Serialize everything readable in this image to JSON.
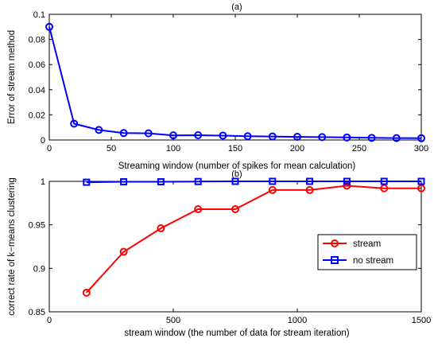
{
  "chart_data": [
    {
      "type": "line",
      "title": "(a)",
      "xlabel": "Streaming window (number of spikes for mean calculation)",
      "ylabel": "Error of stream method",
      "xlim": [
        0,
        300
      ],
      "ylim": [
        0,
        0.1
      ],
      "xticks": [
        0,
        50,
        100,
        150,
        200,
        250,
        300
      ],
      "xtick_labels": [
        "0",
        "50",
        "100",
        "150",
        "200",
        "250",
        "300"
      ],
      "yticks": [
        0,
        0.02,
        0.04,
        0.06,
        0.08,
        0.1
      ],
      "ytick_labels": [
        "0",
        "0.02",
        "0.04",
        "0.06",
        "0.08",
        "0.1"
      ],
      "grid": false,
      "series": [
        {
          "color": "#0000ff",
          "marker": "circle",
          "x": [
            0,
            20,
            40,
            60,
            80,
            100,
            120,
            140,
            160,
            180,
            200,
            220,
            240,
            260,
            280,
            300
          ],
          "y": [
            0.09,
            0.013,
            0.008,
            0.0055,
            0.0053,
            0.0037,
            0.0038,
            0.0035,
            0.003,
            0.0028,
            0.0025,
            0.0023,
            0.002,
            0.0017,
            0.0015,
            0.0014
          ]
        }
      ]
    },
    {
      "type": "line",
      "title": "(b)",
      "xlabel": "stream window (the number of data for stream iteration)",
      "ylabel": "correct rate of k−means clustering",
      "xlim": [
        0,
        1500
      ],
      "ylim": [
        0.85,
        1.0
      ],
      "xticks": [
        0,
        500,
        1000,
        1500
      ],
      "xtick_labels": [
        "0",
        "500",
        "1000",
        "1500"
      ],
      "yticks": [
        0.85,
        0.9,
        0.95,
        1.0
      ],
      "ytick_labels": [
        "0.85",
        "0.9",
        "0.95",
        "1"
      ],
      "grid": false,
      "legend_position": "right",
      "series": [
        {
          "name": "stream",
          "color": "#ff0000",
          "marker": "circle",
          "x": [
            150,
            300,
            450,
            600,
            750,
            900,
            1050,
            1200,
            1350,
            1500
          ],
          "y": [
            0.872,
            0.919,
            0.946,
            0.968,
            0.968,
            0.99,
            0.99,
            0.995,
            0.992,
            0.992
          ]
        },
        {
          "name": "no stream",
          "color": "#0000ff",
          "marker": "square",
          "x": [
            150,
            300,
            450,
            600,
            750,
            900,
            1050,
            1200,
            1350,
            1500
          ],
          "y": [
            0.999,
            0.9995,
            0.9995,
            0.9998,
            1.0,
            1.0,
            1.0,
            1.0,
            1.0,
            1.0
          ]
        }
      ]
    }
  ]
}
